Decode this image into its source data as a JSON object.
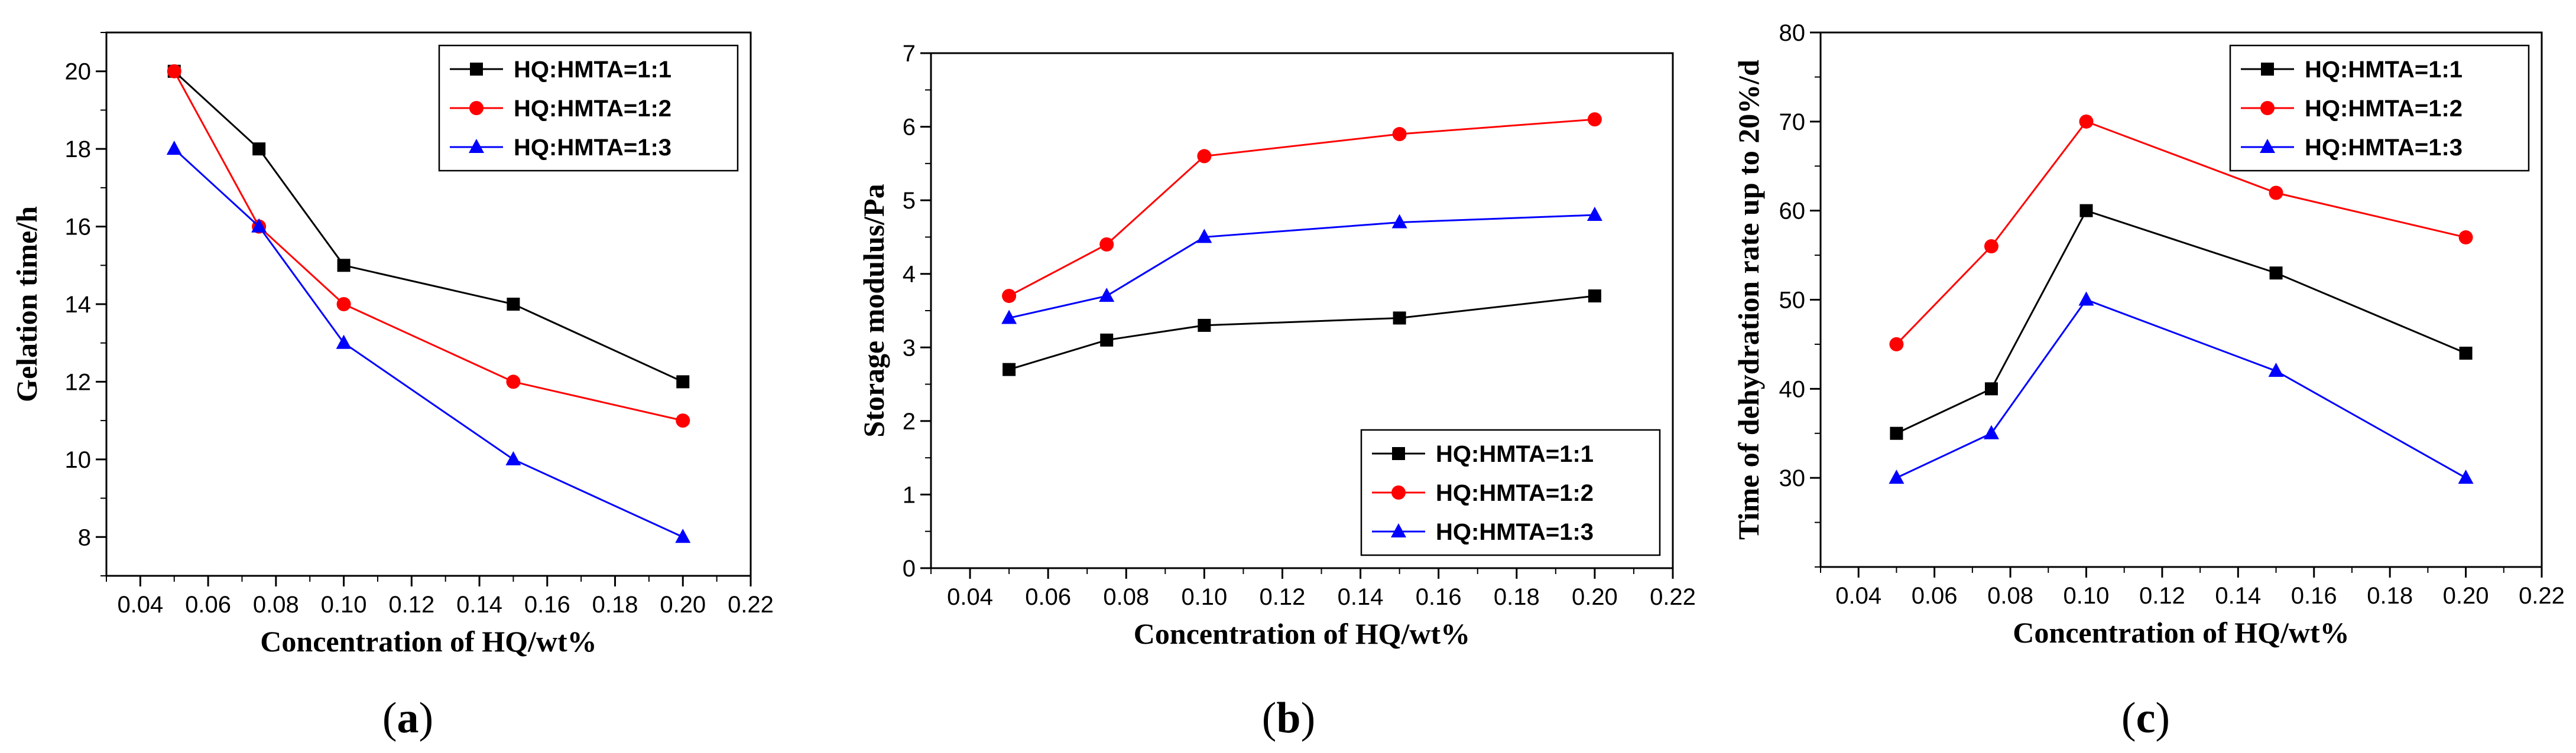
{
  "chart_data": [
    {
      "type": "line",
      "panel_label": "a",
      "title": "",
      "xlabel": "Concentration of HQ/wt%",
      "ylabel": "Gelation time/h",
      "xlim": [
        0.03,
        0.22
      ],
      "ylim": [
        7,
        21
      ],
      "xticks": [
        0.04,
        0.06,
        0.08,
        0.1,
        0.12,
        0.14,
        0.16,
        0.18,
        0.2,
        0.22
      ],
      "xtick_labels": [
        "0.04",
        "0.06",
        "0.08",
        "0.10",
        "0.12",
        "0.14",
        "0.16",
        "0.18",
        "0.20",
        "0.22"
      ],
      "yticks": [
        8,
        10,
        12,
        14,
        16,
        18,
        20
      ],
      "ytick_labels": [
        "8",
        "10",
        "12",
        "14",
        "16",
        "18",
        "20"
      ],
      "legend_position": "top-right",
      "x": [
        0.05,
        0.075,
        0.1,
        0.15,
        0.2
      ],
      "series": [
        {
          "name": "HQ:HMTA=1:1",
          "color": "#000000",
          "marker": "square",
          "values": [
            20,
            18,
            15,
            14,
            12
          ]
        },
        {
          "name": "HQ:HMTA=1:2",
          "color": "#ff0000",
          "marker": "circle",
          "values": [
            20,
            16,
            14,
            12,
            11
          ]
        },
        {
          "name": "HQ:HMTA=1:3",
          "color": "#0000ff",
          "marker": "triangle",
          "values": [
            18,
            16,
            13,
            10,
            8
          ]
        }
      ]
    },
    {
      "type": "line",
      "panel_label": "b",
      "title": "",
      "xlabel": "Concentration of HQ/wt%",
      "ylabel": "Storage modulus/Pa",
      "xlim": [
        0.03,
        0.22
      ],
      "ylim": [
        0,
        7
      ],
      "xticks": [
        0.04,
        0.06,
        0.08,
        0.1,
        0.12,
        0.14,
        0.16,
        0.18,
        0.2,
        0.22
      ],
      "xtick_labels": [
        "0.04",
        "0.06",
        "0.08",
        "0.10",
        "0.12",
        "0.14",
        "0.16",
        "0.18",
        "0.20",
        "0.22"
      ],
      "yticks": [
        0,
        1,
        2,
        3,
        4,
        5,
        6,
        7
      ],
      "ytick_labels": [
        "0",
        "1",
        "2",
        "3",
        "4",
        "5",
        "6",
        "7"
      ],
      "legend_position": "bottom-right",
      "x": [
        0.05,
        0.075,
        0.1,
        0.15,
        0.2
      ],
      "series": [
        {
          "name": "HQ:HMTA=1:1",
          "color": "#000000",
          "marker": "square",
          "values": [
            2.7,
            3.1,
            3.3,
            3.4,
            3.7
          ]
        },
        {
          "name": "HQ:HMTA=1:2",
          "color": "#ff0000",
          "marker": "circle",
          "values": [
            3.7,
            4.4,
            5.6,
            5.9,
            6.1
          ]
        },
        {
          "name": "HQ:HMTA=1:3",
          "color": "#0000ff",
          "marker": "triangle",
          "values": [
            3.4,
            3.7,
            4.5,
            4.7,
            4.8
          ]
        }
      ]
    },
    {
      "type": "line",
      "panel_label": "c",
      "title": "",
      "xlabel": "Concentration of HQ/wt%",
      "ylabel": "Time of dehydration rate up to 20%/d",
      "xlim": [
        0.03,
        0.22
      ],
      "ylim": [
        20,
        80
      ],
      "xticks": [
        0.04,
        0.06,
        0.08,
        0.1,
        0.12,
        0.14,
        0.16,
        0.18,
        0.2,
        0.22
      ],
      "xtick_labels": [
        "0.04",
        "0.06",
        "0.08",
        "0.10",
        "0.12",
        "0.14",
        "0.16",
        "0.18",
        "0.20",
        "0.22"
      ],
      "yticks": [
        30,
        40,
        50,
        60,
        70,
        80
      ],
      "ytick_labels": [
        "30",
        "40",
        "50",
        "60",
        "70",
        "80"
      ],
      "legend_position": "top-right",
      "x": [
        0.05,
        0.075,
        0.1,
        0.15,
        0.2
      ],
      "series": [
        {
          "name": "HQ:HMTA=1:1",
          "color": "#000000",
          "marker": "square",
          "values": [
            35,
            40,
            60,
            53,
            44
          ]
        },
        {
          "name": "HQ:HMTA=1:2",
          "color": "#ff0000",
          "marker": "circle",
          "values": [
            45,
            56,
            70,
            62,
            57
          ]
        },
        {
          "name": "HQ:HMTA=1:3",
          "color": "#0000ff",
          "marker": "triangle",
          "values": [
            30,
            35,
            50,
            42,
            30
          ]
        }
      ]
    }
  ]
}
